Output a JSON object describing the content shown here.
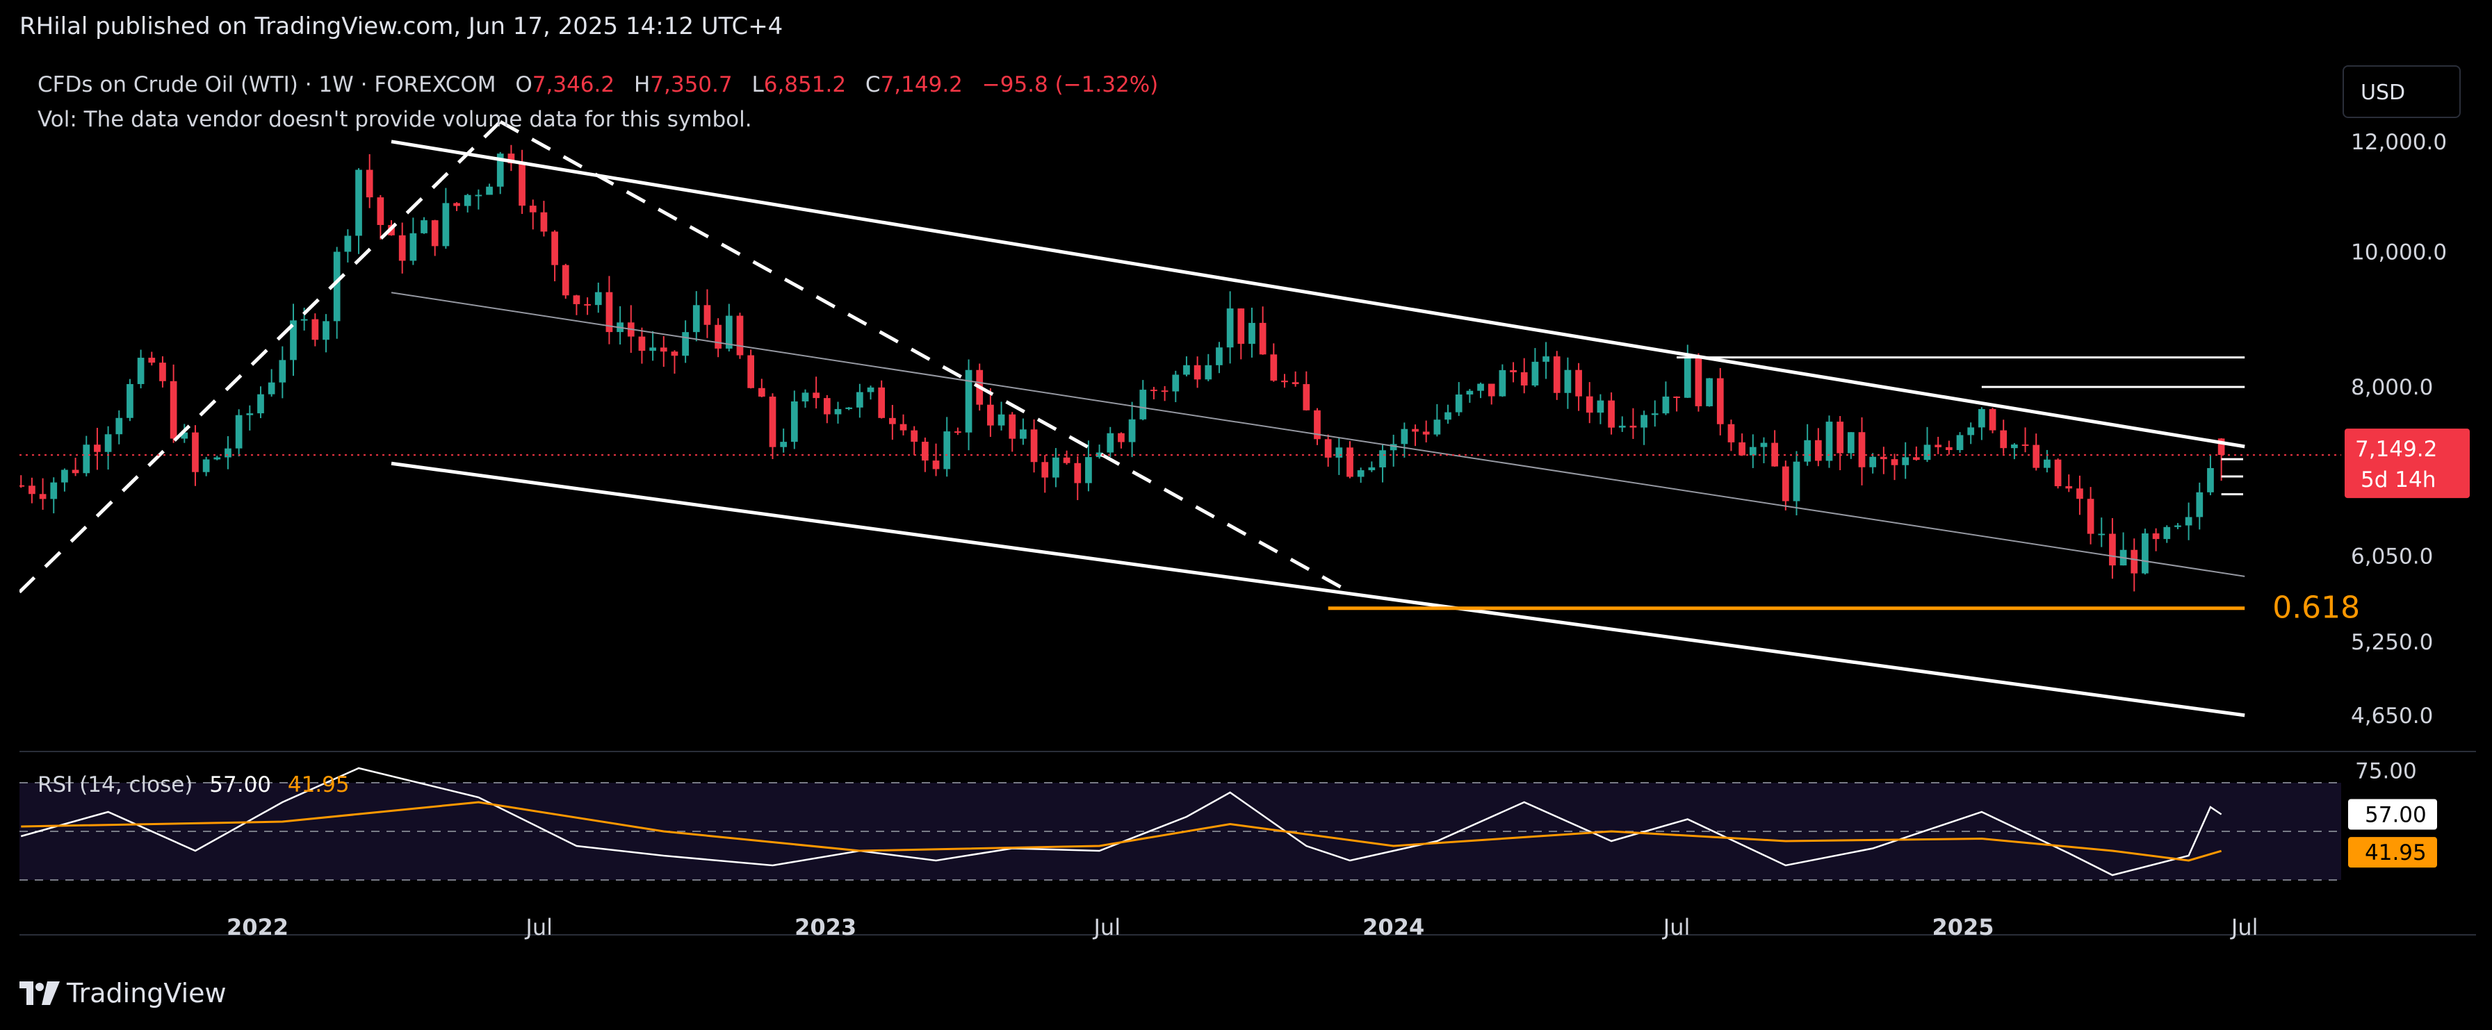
{
  "publish": {
    "text": "RHilal published on TradingView.com, Jun 17, 2025 14:12 UTC+4"
  },
  "legend": {
    "symbol": "CFDs on Crude Oil (WTI) · 1W · FOREXCOM",
    "open_label": "O",
    "open": "7,346.2",
    "high_label": "H",
    "high": "7,350.7",
    "low_label": "L",
    "low": "6,851.2",
    "close_label": "C",
    "close": "7,149.2",
    "change": "−95.8 (−1.32%)",
    "volume_note": "Vol: The data vendor doesn't provide volume data for this symbol."
  },
  "currency": "USD",
  "rsi_legend": {
    "name": "RSI (14, close)",
    "rsi": "57.00",
    "ma": "41.95"
  },
  "brand": "TradingView",
  "colors": {
    "bull": "#26a69a",
    "bear": "#f23645",
    "fib": "#ff9800",
    "rsi_line": "#ffffff",
    "rsi_ma": "#ff9800",
    "price_tag": "#f23645"
  },
  "chart_data": {
    "type": "candlestick",
    "symbol": "CFDs on Crude Oil (WTI)",
    "interval": "1W",
    "scale": "log",
    "y_ticks": [
      "12,000.0",
      "10,000.0",
      "8,000.0",
      "6,050.0",
      "5,250.0",
      "4,650.0"
    ],
    "y_tick_values": [
      12000,
      10000,
      8000,
      6050,
      5250,
      4650
    ],
    "x_ticks": [
      "2022",
      "Jul",
      "2023",
      "Jul",
      "2024",
      "Jul",
      "2025",
      "Jul"
    ],
    "x_tick_dates": [
      "2022-01-01",
      "2022-07-01",
      "2023-01-01",
      "2023-07-01",
      "2024-01-01",
      "2024-07-01",
      "2025-01-01",
      "2025-07-01"
    ],
    "x_start": "2021-08-01",
    "x_end": "2025-09-01",
    "last_price_label": "7,149.2",
    "countdown_label": "5d 14h",
    "fib_label": "0.618",
    "fib_level": 5550,
    "closes": [
      [
        "2021-08-02",
        6800
      ],
      [
        "2021-08-30",
        6900
      ],
      [
        "2021-09-27",
        7600
      ],
      [
        "2021-10-25",
        8300
      ],
      [
        "2021-11-22",
        6900
      ],
      [
        "2021-12-20",
        7400
      ],
      [
        "2022-01-17",
        8500
      ],
      [
        "2022-02-14",
        9100
      ],
      [
        "2022-03-07",
        11500
      ],
      [
        "2022-03-28",
        10000
      ],
      [
        "2022-04-25",
        10400
      ],
      [
        "2022-05-23",
        11200
      ],
      [
        "2022-06-13",
        11900
      ],
      [
        "2022-06-27",
        10500
      ],
      [
        "2022-07-25",
        9300
      ],
      [
        "2022-08-22",
        8900
      ],
      [
        "2022-09-19",
        8200
      ],
      [
        "2022-10-10",
        9000
      ],
      [
        "2022-10-31",
        8700
      ],
      [
        "2022-11-28",
        7300
      ],
      [
        "2022-12-26",
        7900
      ],
      [
        "2023-01-23",
        7800
      ],
      [
        "2023-02-20",
        7700
      ],
      [
        "2023-03-13",
        6800
      ],
      [
        "2023-04-03",
        8100
      ],
      [
        "2023-05-01",
        7300
      ],
      [
        "2023-05-29",
        7000
      ],
      [
        "2023-06-26",
        7000
      ],
      [
        "2023-07-24",
        7900
      ],
      [
        "2023-08-21",
        8200
      ],
      [
        "2023-09-18",
        9000
      ],
      [
        "2023-10-09",
        8400
      ],
      [
        "2023-11-06",
        7600
      ],
      [
        "2023-12-04",
        7100
      ],
      [
        "2024-01-01",
        7300
      ],
      [
        "2024-01-29",
        7600
      ],
      [
        "2024-02-26",
        7900
      ],
      [
        "2024-03-25",
        8300
      ],
      [
        "2024-04-22",
        8000
      ],
      [
        "2024-05-20",
        7700
      ],
      [
        "2024-06-17",
        7800
      ],
      [
        "2024-07-08",
        8200
      ],
      [
        "2024-08-05",
        7500
      ],
      [
        "2024-09-09",
        6800
      ],
      [
        "2024-10-07",
        7400
      ],
      [
        "2024-11-04",
        7000
      ],
      [
        "2024-12-02",
        7000
      ],
      [
        "2025-01-13",
        7800
      ],
      [
        "2025-02-10",
        7100
      ],
      [
        "2025-03-10",
        6700
      ],
      [
        "2025-04-07",
        6000
      ],
      [
        "2025-05-05",
        6100
      ],
      [
        "2025-05-26",
        6300
      ],
      [
        "2025-06-09",
        7200
      ],
      [
        "2025-06-16",
        7149.2
      ]
    ],
    "rsi": {
      "name": "RSI (14, close)",
      "last": 57.0,
      "ma_last": 41.95,
      "ticks": [
        "75.00"
      ],
      "band_upper": 70,
      "band_mid": 50,
      "band_lower": 30,
      "values": [
        [
          "2021-08-02",
          48
        ],
        [
          "2021-09-27",
          58
        ],
        [
          "2021-11-22",
          42
        ],
        [
          "2022-01-17",
          62
        ],
        [
          "2022-03-07",
          76
        ],
        [
          "2022-05-23",
          64
        ],
        [
          "2022-07-25",
          44
        ],
        [
          "2022-09-19",
          40
        ],
        [
          "2022-11-28",
          36
        ],
        [
          "2023-01-23",
          42
        ],
        [
          "2023-03-13",
          38
        ],
        [
          "2023-05-01",
          43
        ],
        [
          "2023-06-26",
          42
        ],
        [
          "2023-08-21",
          56
        ],
        [
          "2023-09-18",
          66
        ],
        [
          "2023-11-06",
          44
        ],
        [
          "2023-12-04",
          38
        ],
        [
          "2024-01-29",
          46
        ],
        [
          "2024-03-25",
          62
        ],
        [
          "2024-05-20",
          46
        ],
        [
          "2024-07-08",
          55
        ],
        [
          "2024-09-09",
          36
        ],
        [
          "2024-11-04",
          43
        ],
        [
          "2025-01-13",
          58
        ],
        [
          "2025-03-10",
          41
        ],
        [
          "2025-04-07",
          32
        ],
        [
          "2025-05-26",
          40
        ],
        [
          "2025-06-09",
          60
        ],
        [
          "2025-06-16",
          57
        ]
      ],
      "ma": [
        [
          "2021-08-02",
          52
        ],
        [
          "2022-01-17",
          54
        ],
        [
          "2022-05-23",
          62
        ],
        [
          "2022-09-19",
          50
        ],
        [
          "2023-01-23",
          42
        ],
        [
          "2023-06-26",
          44
        ],
        [
          "2023-09-18",
          53
        ],
        [
          "2024-01-01",
          44
        ],
        [
          "2024-05-20",
          50
        ],
        [
          "2024-09-09",
          46
        ],
        [
          "2025-01-13",
          47
        ],
        [
          "2025-04-07",
          42
        ],
        [
          "2025-05-26",
          38
        ],
        [
          "2025-06-16",
          41.95
        ]
      ]
    },
    "annotations": [
      {
        "type": "channel-upper",
        "from": [
          "2022-03-28",
          12000
        ],
        "to": [
          "2025-07-01",
          7250
        ]
      },
      {
        "type": "channel-lower",
        "from": [
          "2022-03-28",
          7050
        ],
        "to": [
          "2025-07-01",
          4650
        ]
      },
      {
        "type": "channel-mid",
        "from": [
          "2022-03-28",
          9350
        ],
        "to": [
          "2025-07-01",
          5850
        ]
      },
      {
        "type": "dashed-trend-up",
        "from": [
          "2021-08-01",
          5700
        ],
        "to": [
          "2022-06-06",
          12400
        ]
      },
      {
        "type": "dashed-trend-down",
        "from": [
          "2022-06-06",
          12400
        ],
        "to": [
          "2023-12-04",
          5700
        ]
      },
      {
        "type": "horizontal",
        "from": [
          "2024-07-01",
          8400
        ],
        "to": [
          "2025-07-01",
          8400
        ]
      },
      {
        "type": "horizontal",
        "from": [
          "2025-01-13",
          8000
        ],
        "to": [
          "2025-07-01",
          8000
        ]
      },
      {
        "type": "fib-0.618",
        "from": [
          "2023-11-20",
          5550
        ],
        "to": [
          "2025-07-01",
          5550
        ]
      }
    ]
  }
}
